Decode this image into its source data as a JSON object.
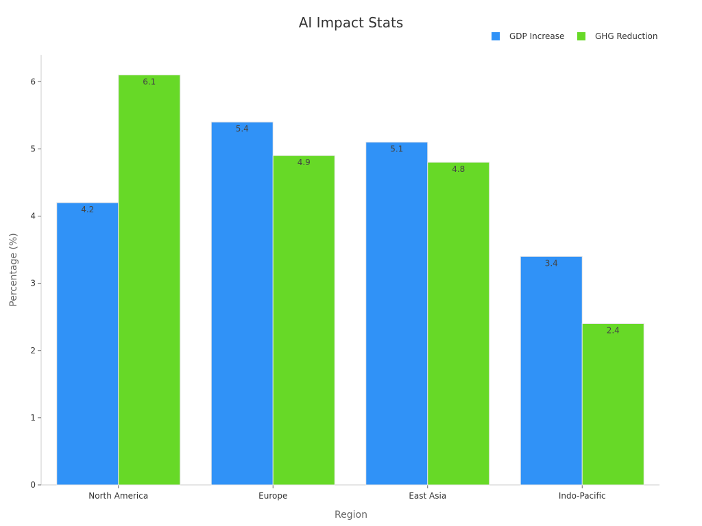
{
  "chart_data": {
    "type": "bar",
    "title": "AI Impact Stats",
    "xlabel": "Region",
    "ylabel": "Percentage (%)",
    "categories": [
      "North America",
      "Europe",
      "East Asia",
      "Indo-Pacific"
    ],
    "series": [
      {
        "name": "GDP Increase",
        "values": [
          4.2,
          5.4,
          5.1,
          3.4
        ],
        "color": "#3092f7"
      },
      {
        "name": "GHG Reduction",
        "values": [
          6.1,
          4.9,
          4.8,
          2.4
        ],
        "color": "#67d927"
      }
    ],
    "ylim": [
      0,
      6.4
    ],
    "yticks": [
      "0",
      "1",
      "2",
      "3",
      "4",
      "5",
      "6"
    ],
    "legend_position": "top-right",
    "grid": false
  }
}
